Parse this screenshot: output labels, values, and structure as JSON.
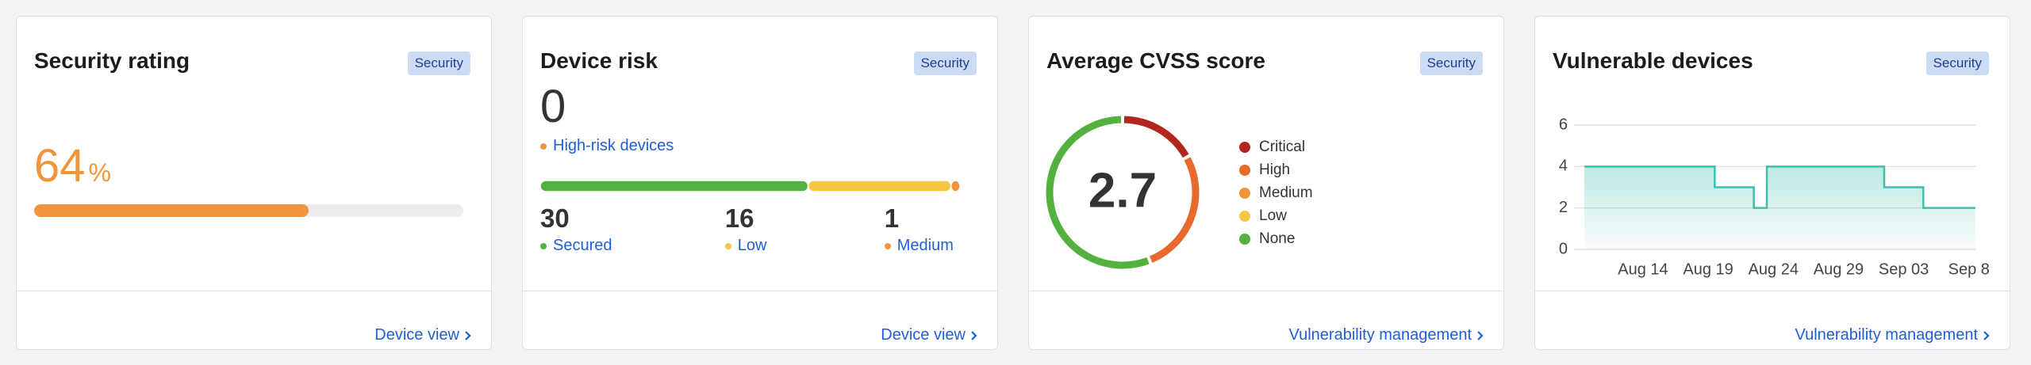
{
  "cards": [
    {
      "title": "Security rating",
      "badge": "Security",
      "value": 64,
      "unit": "%",
      "color": "#f0953a",
      "link": "Device view"
    },
    {
      "title": "Device risk",
      "badge": "Security",
      "value": 0,
      "subtitle": "High-risk devices",
      "segments": [
        {
          "name": "Secured",
          "value": 30,
          "color": "#53b13f"
        },
        {
          "name": "Low",
          "value": 16,
          "color": "#f5c544"
        },
        {
          "name": "Medium",
          "value": 1,
          "color": "#f0953a"
        }
      ],
      "link": "Device view"
    },
    {
      "title": "Average CVSS score",
      "badge": "Security",
      "value": 2.7,
      "segments": [
        {
          "name": "Critical",
          "value": 17,
          "color": "#b3261e"
        },
        {
          "name": "High",
          "value": 27,
          "color": "#e8692c"
        },
        {
          "name": "Medium",
          "value": 0,
          "color": "#f0953a"
        },
        {
          "name": "Low",
          "value": 0,
          "color": "#f5c544"
        },
        {
          "name": "None",
          "value": 56,
          "color": "#53b13f"
        }
      ],
      "link": "Vulnerability management"
    },
    {
      "title": "Vulnerable devices",
      "badge": "Security",
      "chart": {
        "type": "line",
        "step": true,
        "color": "#3dbfb0",
        "categories": [
          null,
          null,
          null,
          null,
          "Aug 14",
          null,
          null,
          null,
          null,
          "Aug 19",
          null,
          null,
          null,
          null,
          "Aug 24",
          null,
          null,
          null,
          null,
          "Aug 29",
          null,
          null,
          null,
          null,
          "Sep 03",
          null,
          null,
          null,
          null,
          "Sep 8"
        ],
        "values": [
          4,
          4,
          4,
          4,
          4,
          4,
          4,
          4,
          4,
          4,
          3,
          3,
          3,
          2,
          4,
          4,
          4,
          4,
          4,
          4,
          4,
          4,
          4,
          3,
          3,
          3,
          2,
          2,
          2,
          2
        ],
        "ylim": [
          0,
          6
        ],
        "yticks": [
          0,
          2,
          4,
          6
        ],
        "grid": true
      },
      "link": "Vulnerability management"
    }
  ]
}
